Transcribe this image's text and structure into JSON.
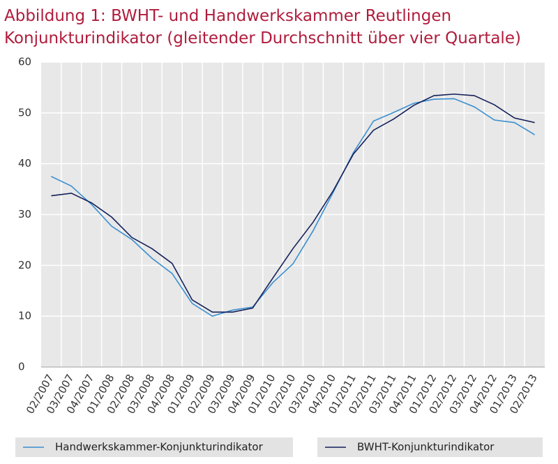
{
  "chart_data": {
    "type": "line",
    "title": "Abbildung 1: BWHT- und Handwerkskammer  Reutlingen",
    "subtitle": "Konjunkturindikator (gleitender Durchschnitt über vier Quartale)",
    "categories": [
      "02/2007",
      "03/2007",
      "04/2007",
      "01/2008",
      "02/2008",
      "03/2008",
      "04/2008",
      "01/2009",
      "02/2009",
      "03/2009",
      "04/2009",
      "01/2010",
      "02/2010",
      "03/2010",
      "04/2010",
      "01/2011",
      "02/2011",
      "03/2011",
      "04/2011",
      "01/2012",
      "02/2012",
      "03/2012",
      "04/2012",
      "01/2013",
      "02/2013"
    ],
    "series": [
      {
        "name": "Handwerkskammer-Konjunkturindikator",
        "color": "#3a8fd0",
        "values": [
          37.5,
          35.6,
          32.0,
          27.7,
          25.1,
          21.4,
          18.4,
          12.5,
          10.0,
          11.2,
          11.8,
          16.6,
          20.3,
          26.8,
          34.4,
          42.2,
          48.4,
          50.1,
          51.9,
          52.7,
          52.8,
          51.2,
          48.6,
          48.1,
          45.7
        ]
      },
      {
        "name": "BWHT-Konjunkturindikator",
        "color": "#14205a",
        "values": [
          33.7,
          34.2,
          32.3,
          29.5,
          25.5,
          23.3,
          20.4,
          13.2,
          10.8,
          10.8,
          11.6,
          17.5,
          23.3,
          28.5,
          34.7,
          41.9,
          46.6,
          48.8,
          51.5,
          53.4,
          53.7,
          53.4,
          51.6,
          49.0,
          48.1
        ]
      }
    ],
    "ylim": [
      0,
      60
    ],
    "yticks": [
      0,
      10,
      20,
      30,
      40,
      50,
      60
    ],
    "grid": true
  }
}
